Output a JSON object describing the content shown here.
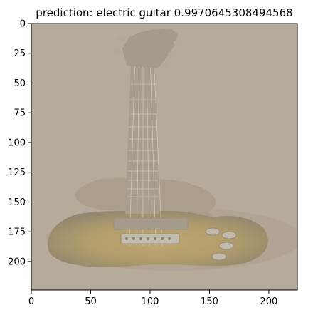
{
  "title": "prediction: electric guitar 0.9970645308494568",
  "chart_data": {
    "type": "image",
    "title": "prediction: electric guitar 0.9970645308494568",
    "xlabel": "",
    "ylabel": "",
    "xlim": [
      0,
      224
    ],
    "ylim": [
      224,
      0
    ],
    "x_ticks": [
      0,
      50,
      100,
      150,
      200
    ],
    "y_ticks": [
      0,
      25,
      50,
      75,
      100,
      125,
      150,
      175,
      200
    ],
    "grid": false
  },
  "image": {
    "subject": "electric-guitar",
    "background_color": "#b6aa9c",
    "body_sunburst_color": "#b59d5c"
  }
}
